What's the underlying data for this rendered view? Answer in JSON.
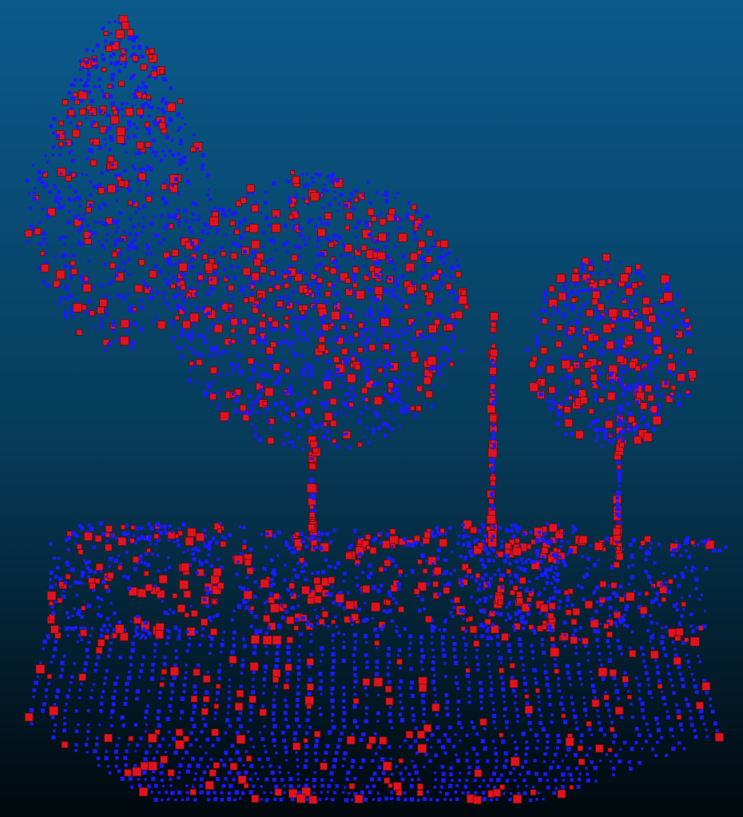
{
  "viewer": {
    "background_top_color": "#0a5a8c",
    "background_mid_color": "#063a58",
    "background_bottom_color": "#01080d"
  },
  "point_cloud": {
    "primary_point_color": "#1a1aff",
    "highlight_point_color": "#e0141e",
    "highlight_stroke_color": "#6a0a10",
    "objects": [
      "tree-left",
      "tree-center",
      "tree-right-small",
      "pole",
      "bush-left",
      "bush-center",
      "bush-right",
      "ground"
    ]
  }
}
